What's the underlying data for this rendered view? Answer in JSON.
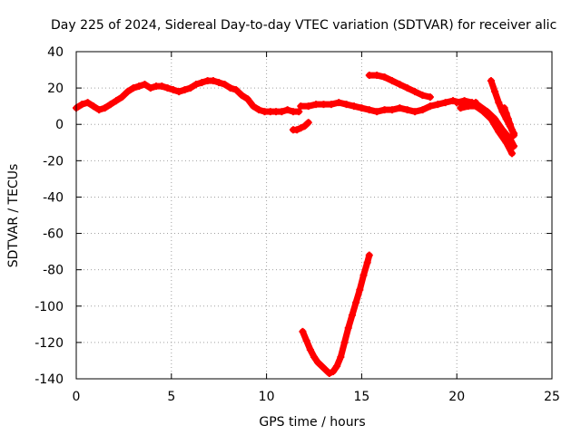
{
  "chart_data": {
    "type": "scatter",
    "title": "Day 225 of 2024, Sidereal Day-to-day VTEC variation (SDTVAR) for receiver alic",
    "xlabel": "GPS time / hours",
    "ylabel": "SDTVAR / TECUs",
    "xlim": [
      0,
      25
    ],
    "ylim": [
      -140,
      40
    ],
    "x_ticks": [
      "0",
      "5",
      "10",
      "15",
      "20",
      "25"
    ],
    "y_ticks": [
      "-140",
      "-120",
      "-100",
      "-80",
      "-60",
      "-40",
      "-20",
      "0",
      "20",
      "40"
    ],
    "grid": true,
    "marker_color": "#ff0000",
    "series": [
      {
        "x": [
          0.0,
          0.3,
          0.6,
          0.9,
          1.2,
          1.5,
          1.8,
          2.1,
          2.4,
          2.7,
          3.0,
          3.3,
          3.6,
          3.9,
          4.2,
          4.5,
          4.8,
          5.1,
          5.4,
          5.7,
          6.0,
          6.3,
          6.6,
          6.9,
          7.2,
          7.5,
          7.8,
          8.1,
          8.4,
          8.7,
          9.0,
          9.3,
          9.6,
          9.9,
          10.2,
          10.5,
          10.8,
          11.1,
          11.4,
          11.7
        ],
        "y": [
          9,
          11,
          12,
          10,
          8,
          9,
          11,
          13,
          15,
          18,
          20,
          21,
          22,
          20,
          21,
          21,
          20,
          19,
          18,
          19,
          20,
          22,
          23,
          24,
          24,
          23,
          22,
          20,
          19,
          16,
          14,
          10,
          8,
          7,
          7,
          7,
          7,
          8,
          7,
          7
        ]
      },
      {
        "x": [
          11.4,
          11.6,
          11.8,
          12.0,
          12.2
        ],
        "y": [
          -3,
          -3,
          -2,
          -1,
          1
        ]
      },
      {
        "x": [
          11.9,
          12.1,
          12.3,
          12.5,
          12.7,
          12.9,
          13.1,
          13.3,
          13.5,
          13.7,
          13.9,
          14.1,
          14.3,
          14.5,
          14.7,
          14.9,
          15.1,
          15.3,
          15.4
        ],
        "y": [
          -114,
          -119,
          -124,
          -128,
          -131,
          -133,
          -135,
          -137,
          -136,
          -133,
          -128,
          -120,
          -112,
          -105,
          -98,
          -91,
          -83,
          -76,
          -72
        ]
      },
      {
        "x": [
          11.8,
          12.2,
          12.6,
          13.0,
          13.4,
          13.8,
          14.2,
          14.6,
          15.0,
          15.4,
          15.8,
          16.2,
          16.6,
          17.0,
          17.4,
          17.8,
          18.2,
          18.6,
          19.0,
          19.4,
          19.8,
          20.2,
          20.6,
          21.0
        ],
        "y": [
          10,
          10,
          11,
          11,
          11,
          12,
          11,
          10,
          9,
          8,
          7,
          8,
          8,
          9,
          8,
          7,
          8,
          10,
          11,
          12,
          13,
          12,
          11,
          12
        ]
      },
      {
        "x": [
          15.4,
          15.8,
          16.2,
          16.6,
          17.0,
          17.4,
          17.8,
          18.2,
          18.6
        ],
        "y": [
          27,
          27,
          26,
          24,
          22,
          20,
          18,
          16,
          15
        ]
      },
      {
        "x": [
          20.0,
          20.4,
          20.8,
          21.2,
          21.6,
          22.0,
          22.4,
          22.8,
          23.0
        ],
        "y": [
          12,
          13,
          12,
          10,
          7,
          3,
          -3,
          -8,
          -12
        ]
      },
      {
        "x": [
          20.2,
          20.6,
          21.0,
          21.4,
          21.8,
          22.2,
          22.6,
          22.9
        ],
        "y": [
          9,
          10,
          10,
          7,
          3,
          -4,
          -10,
          -16
        ]
      },
      {
        "x": [
          21.8,
          22.0,
          22.2,
          22.4,
          22.6,
          22.8,
          23.0
        ],
        "y": [
          24,
          18,
          12,
          7,
          3,
          -1,
          -5
        ]
      },
      {
        "x": [
          22.5,
          22.6,
          22.7,
          22.8,
          22.9,
          23.0
        ],
        "y": [
          9,
          6,
          3,
          0,
          -3,
          -6
        ]
      }
    ]
  }
}
